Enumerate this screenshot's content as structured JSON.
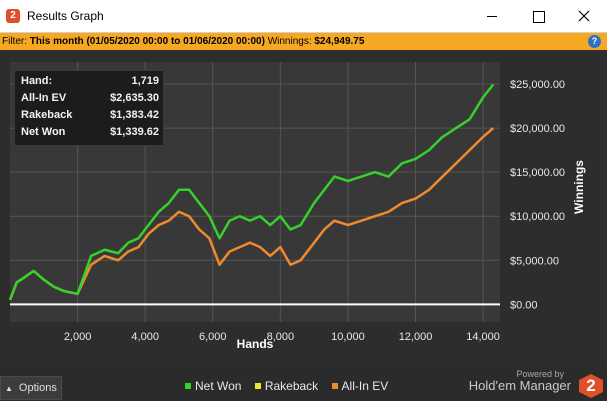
{
  "window": {
    "title": "Results Graph",
    "icon": "holdem-manager-2-icon",
    "controls": [
      "minimize-icon",
      "maximize-icon",
      "close-icon"
    ]
  },
  "filter": {
    "label": "Filter:",
    "value": "This month (01/05/2020 00:00 to 01/06/2020 00:00)",
    "winnings_label": "Winnings:",
    "winnings_value": "$24,949.75",
    "help_icon": "help-icon"
  },
  "stats": {
    "hand_label": "Hand:",
    "hand_value": "1,719",
    "allin_label": "All-In EV",
    "allin_value": "$2,635.30",
    "rakeback_label": "Rakeback",
    "rakeback_value": "$1,383.42",
    "netwon_label": "Net Won",
    "netwon_value": "$1,339.62"
  },
  "bottom": {
    "options_label": "Options",
    "powered_by": "Powered by",
    "brand": "Hold'em Manager",
    "brand_logo": "2"
  },
  "legend": [
    {
      "name": "Net Won",
      "color": "#36d12a"
    },
    {
      "name": "Rakeback",
      "color": "#e8e832"
    },
    {
      "name": "All-In EV",
      "color": "#f08a2e"
    }
  ],
  "chart_data": {
    "type": "line",
    "xlabel": "Hands",
    "ylabel": "Winnings",
    "xlim": [
      0,
      14500
    ],
    "ylim": [
      -2000,
      27500
    ],
    "x_ticks": [
      2000,
      4000,
      6000,
      8000,
      10000,
      12000,
      14000
    ],
    "x_tick_labels": [
      "2,000",
      "4,000",
      "6,000",
      "8,000",
      "10,000",
      "12,000",
      "14,000"
    ],
    "y_ticks": [
      0,
      5000,
      10000,
      15000,
      20000,
      25000
    ],
    "y_tick_labels": [
      "$0.00",
      "$5,000.00",
      "$10,000.00",
      "$15,000.00",
      "$20,000.00",
      "$25,000.00"
    ],
    "grid": true,
    "series": [
      {
        "name": "Net Won",
        "color": "#36d12a",
        "x": [
          0,
          200,
          400,
          700,
          1000,
          1300,
          1600,
          2000,
          2400,
          2800,
          3200,
          3500,
          3800,
          4100,
          4400,
          4700,
          5000,
          5300,
          5600,
          5900,
          6200,
          6500,
          6800,
          7100,
          7400,
          7700,
          8000,
          8300,
          8600,
          9000,
          9300,
          9600,
          10000,
          10400,
          10800,
          11200,
          11600,
          12000,
          12400,
          12800,
          13200,
          13600,
          14000,
          14300
        ],
        "y": [
          500,
          2500,
          3000,
          3800,
          2800,
          2000,
          1500,
          1200,
          5500,
          6200,
          5800,
          7000,
          7500,
          9000,
          10500,
          11500,
          13000,
          13000,
          11500,
          10000,
          7500,
          9500,
          10000,
          9500,
          10000,
          9000,
          10000,
          8500,
          9000,
          11500,
          13000,
          14500,
          14000,
          14500,
          15000,
          14500,
          16000,
          16500,
          17500,
          19000,
          20000,
          21000,
          23500,
          24950
        ]
      },
      {
        "name": "All-In EV",
        "color": "#f08a2e",
        "x": [
          0,
          200,
          400,
          700,
          1000,
          1300,
          1600,
          2000,
          2400,
          2800,
          3200,
          3500,
          3800,
          4100,
          4400,
          4700,
          5000,
          5300,
          5600,
          5900,
          6200,
          6500,
          6800,
          7100,
          7400,
          7700,
          8000,
          8300,
          8600,
          9000,
          9300,
          9600,
          10000,
          10400,
          10800,
          11200,
          11600,
          12000,
          12400,
          12800,
          13200,
          13600,
          14000,
          14300
        ],
        "y": [
          500,
          2500,
          3000,
          3800,
          2800,
          2000,
          1500,
          1200,
          4500,
          5500,
          5000,
          6000,
          6500,
          8000,
          9000,
          9500,
          10500,
          10000,
          8500,
          7500,
          4500,
          6000,
          6500,
          7000,
          6500,
          5500,
          6500,
          4500,
          5000,
          7000,
          8500,
          9500,
          9000,
          9500,
          10000,
          10500,
          11500,
          12000,
          13000,
          14500,
          16000,
          17500,
          19000,
          20000
        ]
      },
      {
        "name": "Rakeback",
        "color": "#e8e832",
        "x": [
          0,
          14300
        ],
        "y": [
          0,
          0
        ]
      }
    ]
  }
}
